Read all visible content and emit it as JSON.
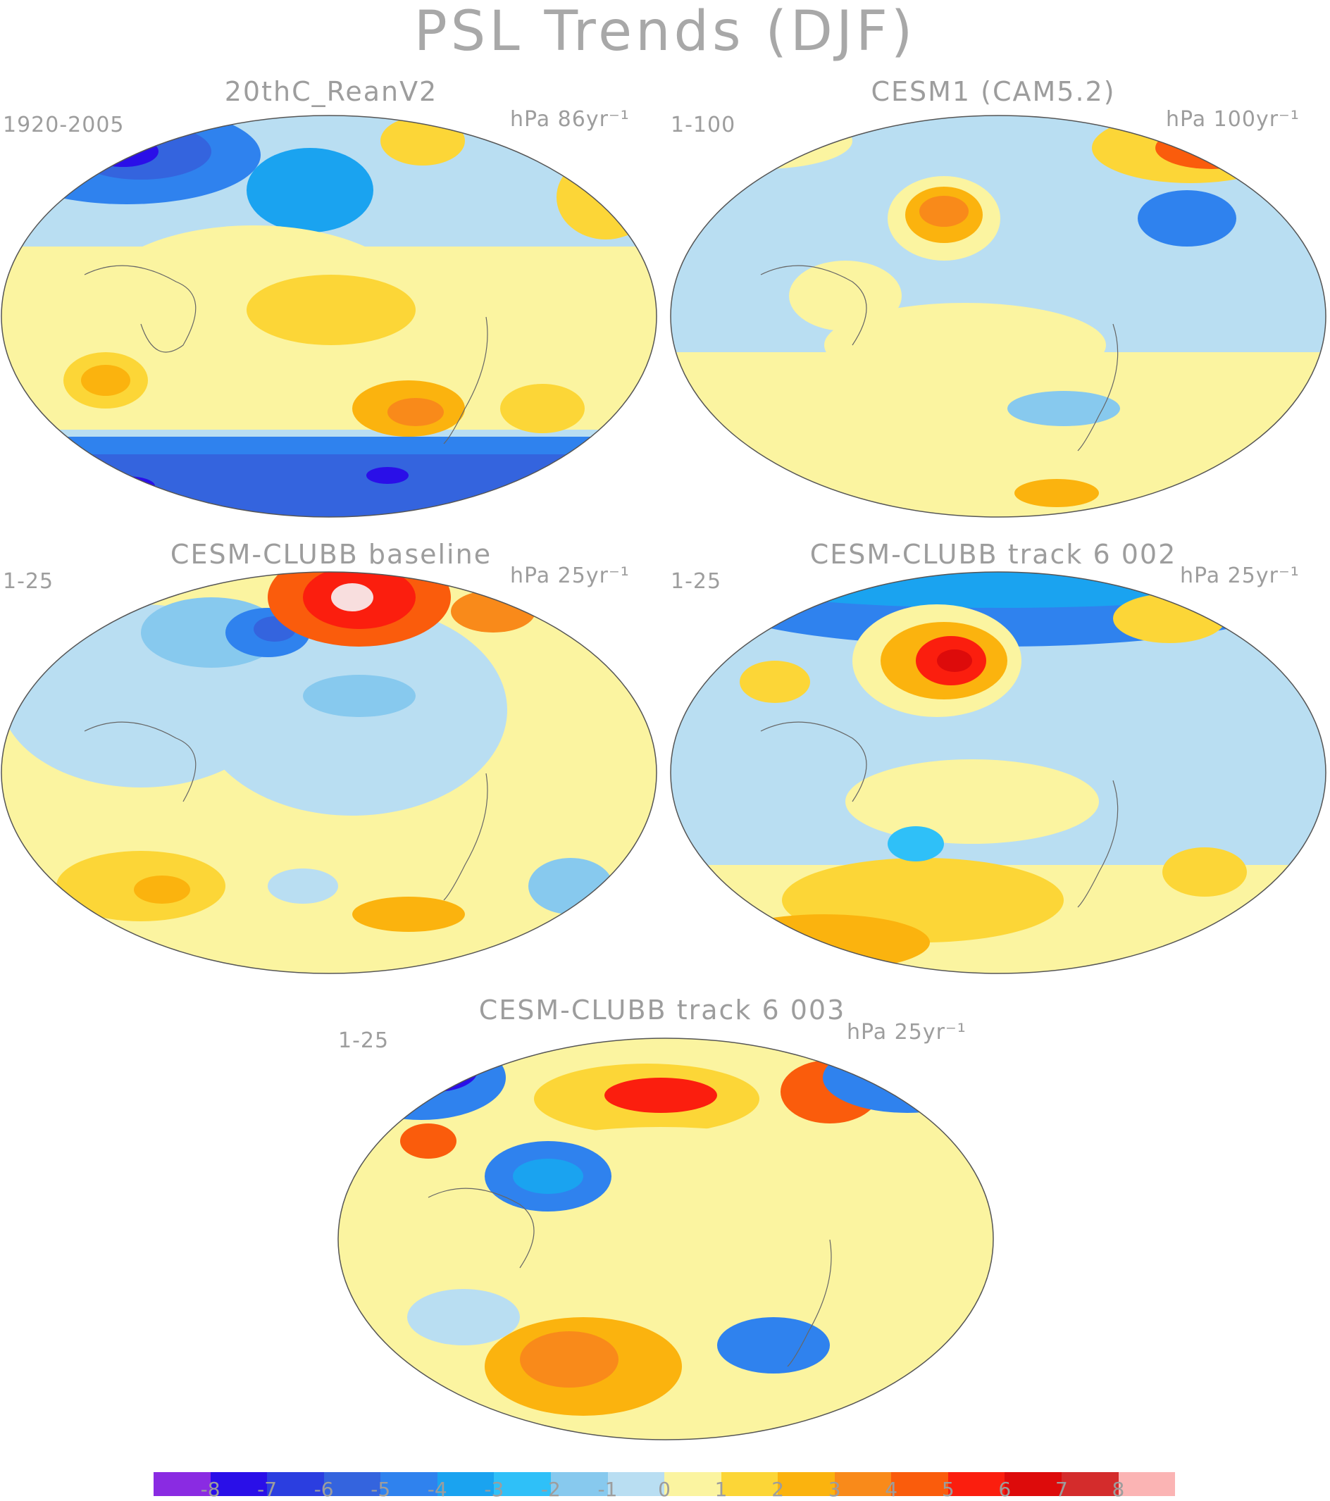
{
  "title": "PSL Trends (DJF)",
  "panels": [
    {
      "title": "20thC_ReanV2",
      "period": "1920-2005",
      "units": "hPa 86yr⁻¹"
    },
    {
      "title": "CESM1 (CAM5.2)",
      "period": "1-100",
      "units": "hPa 100yr⁻¹"
    },
    {
      "title": "CESM-CLUBB baseline",
      "period": "1-25",
      "units": "hPa 25yr⁻¹"
    },
    {
      "title": "CESM-CLUBB track 6 002",
      "period": "1-25",
      "units": "hPa 25yr⁻¹"
    },
    {
      "title": "CESM-CLUBB track 6 003",
      "period": "1-25",
      "units": "hPa 25yr⁻¹"
    }
  ],
  "colorbar": {
    "labels": [
      "-8",
      "-7",
      "-6",
      "-5",
      "-4",
      "-3",
      "-2",
      "-1",
      "0",
      "1",
      "2",
      "3",
      "4",
      "5",
      "6",
      "7",
      "8"
    ],
    "colors": [
      "#8a2be2",
      "#2a0fe8",
      "#2b3ee0",
      "#3464de",
      "#2f82ee",
      "#1aa3f0",
      "#2fc0f8",
      "#87c9ee",
      "#b9def2",
      "#fbf4a0",
      "#fcd637",
      "#fbb30e",
      "#f98a1a",
      "#fa5c0c",
      "#fb1e0e",
      "#dd0b0b",
      "#d42c2c",
      "#fbb4b4"
    ]
  }
}
